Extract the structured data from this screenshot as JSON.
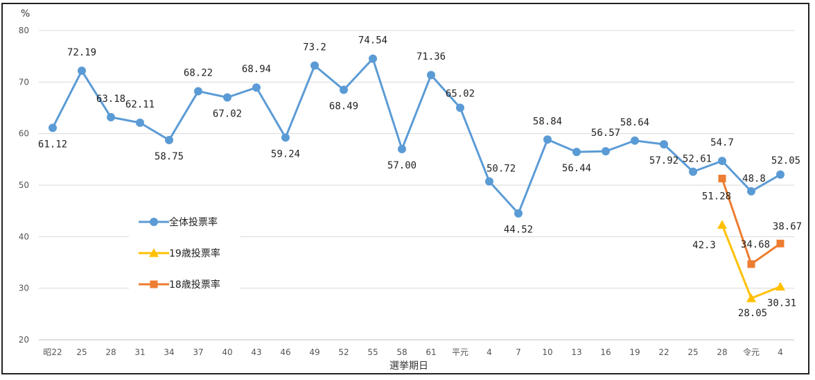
{
  "chart_data": {
    "type": "line",
    "xlabel": "選挙期日",
    "ylabel": "%",
    "ylim": [
      20,
      80
    ],
    "yticks": [
      20,
      30,
      40,
      50,
      60,
      70,
      80
    ],
    "grid": true,
    "legend_position": "left-middle",
    "categories": [
      "昭22",
      "25",
      "28",
      "31",
      "34",
      "37",
      "40",
      "43",
      "46",
      "49",
      "52",
      "55",
      "58",
      "61",
      "平元",
      "4",
      "7",
      "10",
      "13",
      "16",
      "19",
      "22",
      "25",
      "28",
      "令元",
      "4"
    ],
    "series": [
      {
        "name": "全体投票率",
        "color": "#5b9bd5",
        "marker": "circle",
        "values": [
          61.12,
          72.19,
          63.18,
          62.11,
          58.75,
          68.22,
          67.02,
          68.94,
          59.24,
          73.2,
          68.49,
          74.54,
          57.0,
          71.36,
          65.02,
          50.72,
          44.52,
          58.84,
          56.44,
          56.57,
          58.64,
          57.92,
          52.61,
          54.7,
          48.8,
          52.05
        ],
        "labels": [
          "61.12",
          "72.19",
          "63.18",
          "62.11",
          "58.75",
          "68.22",
          "67.02",
          "68.94",
          "59.24",
          "73.2",
          "68.49",
          "74.54",
          "57.00",
          "71.36",
          "65.02",
          "50.72",
          "44.52",
          "58.84",
          "56.44",
          "56.57",
          "58.64",
          "57.92",
          "52.61",
          "54.7",
          "48.8",
          "52.05"
        ]
      },
      {
        "name": "19歳投票率",
        "color": "#ffc000",
        "marker": "triangle",
        "values": [
          null,
          null,
          null,
          null,
          null,
          null,
          null,
          null,
          null,
          null,
          null,
          null,
          null,
          null,
          null,
          null,
          null,
          null,
          null,
          null,
          null,
          null,
          null,
          42.3,
          28.05,
          30.31
        ],
        "labels": [
          null,
          null,
          null,
          null,
          null,
          null,
          null,
          null,
          null,
          null,
          null,
          null,
          null,
          null,
          null,
          null,
          null,
          null,
          null,
          null,
          null,
          null,
          null,
          "42.3",
          "28.05",
          "30.31"
        ]
      },
      {
        "name": "18歳投票率",
        "color": "#ed7d31",
        "marker": "square",
        "values": [
          null,
          null,
          null,
          null,
          null,
          null,
          null,
          null,
          null,
          null,
          null,
          null,
          null,
          null,
          null,
          null,
          null,
          null,
          null,
          null,
          null,
          null,
          null,
          51.28,
          34.68,
          38.67
        ],
        "labels": [
          null,
          null,
          null,
          null,
          null,
          null,
          null,
          null,
          null,
          null,
          null,
          null,
          null,
          null,
          null,
          null,
          null,
          null,
          null,
          null,
          null,
          null,
          null,
          "51.28",
          "34.68",
          "38.67"
        ]
      }
    ]
  }
}
